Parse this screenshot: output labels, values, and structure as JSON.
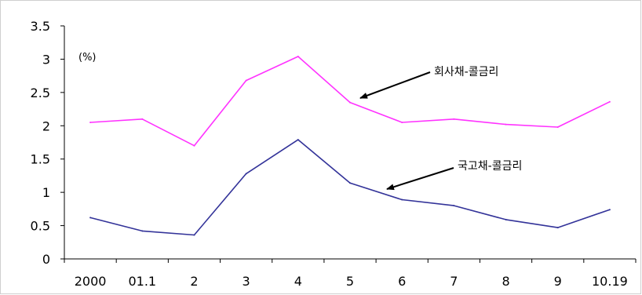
{
  "chart_data": {
    "type": "line",
    "categories": [
      "2000",
      "01.1",
      "2",
      "3",
      "4",
      "5",
      "6",
      "7",
      "8",
      "9",
      "10.19"
    ],
    "ylim": [
      0,
      3.5
    ],
    "yticks": [
      "3.5",
      "3",
      "2.5",
      "2",
      "1.5",
      "1",
      "0.5",
      "0"
    ],
    "unit_label": "(%)",
    "grid": false,
    "series": [
      {
        "name": "회사채-콜금리",
        "color": "#ff33ff",
        "values": [
          2.05,
          2.1,
          1.7,
          2.68,
          3.04,
          2.35,
          2.05,
          2.1,
          2.02,
          1.98,
          2.36
        ]
      },
      {
        "name": "국고채-콜금리",
        "color": "#333399",
        "values": [
          0.62,
          0.42,
          0.36,
          1.28,
          1.79,
          1.14,
          0.89,
          0.8,
          0.59,
          0.47,
          0.74
        ]
      }
    ]
  }
}
